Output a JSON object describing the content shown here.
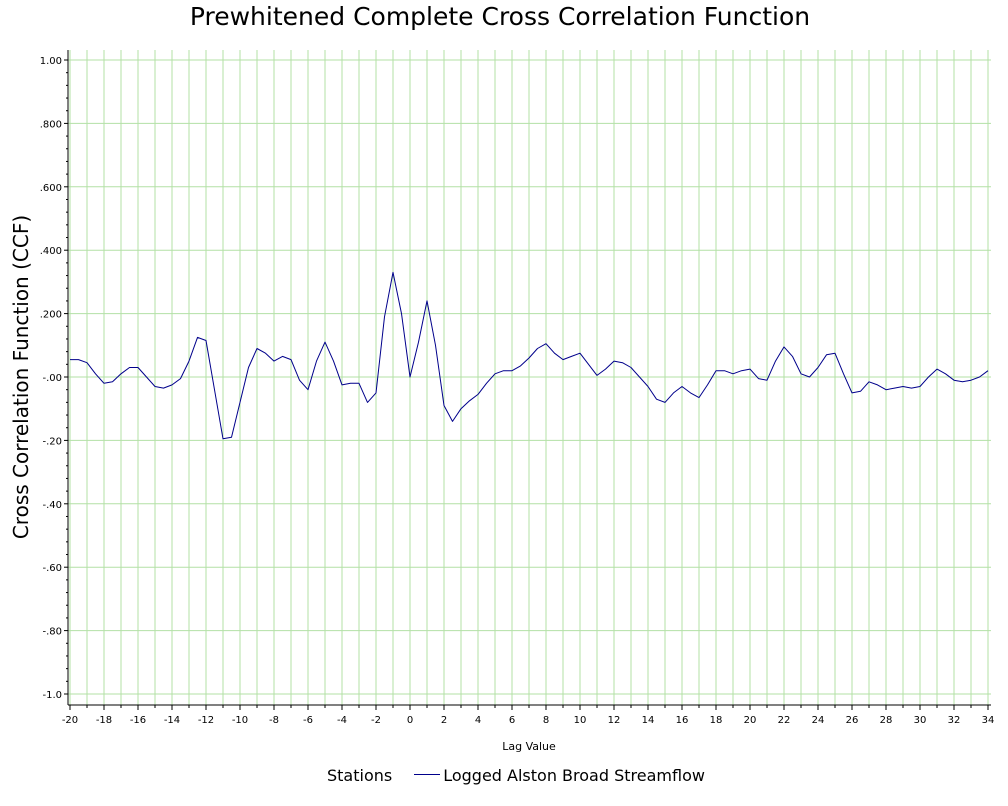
{
  "chart_data": {
    "type": "line",
    "title": "Prewhitened Complete Cross Correlation Function",
    "xlabel": "Lag Value",
    "ylabel": "Cross Correlation Function (CCF)",
    "xlim": [
      -20,
      34
    ],
    "ylim": [
      -1.0,
      1.0
    ],
    "grid": true,
    "x_ticks": [
      -20,
      -18,
      -16,
      -14,
      -12,
      -10,
      -8,
      -6,
      -4,
      -2,
      0,
      2,
      4,
      6,
      8,
      10,
      12,
      14,
      16,
      18,
      20,
      22,
      24,
      26,
      28,
      30,
      32,
      34
    ],
    "y_ticks": [
      {
        "value": 1.0,
        "label": "1.00"
      },
      {
        "value": 0.8,
        "label": ".800"
      },
      {
        "value": 0.6,
        "label": ".600"
      },
      {
        "value": 0.4,
        "label": ".400"
      },
      {
        "value": 0.2,
        "label": ".200"
      },
      {
        "value": 0.0,
        "label": "-.00"
      },
      {
        "value": -0.2,
        "label": "-.20"
      },
      {
        "value": -0.4,
        "label": "-.40"
      },
      {
        "value": -0.6,
        "label": "-.60"
      },
      {
        "value": -0.8,
        "label": "-.80"
      },
      {
        "value": -1.0,
        "label": "-1.0"
      }
    ],
    "legend_title": "Stations",
    "legend_position": "bottom",
    "series": [
      {
        "name": "Logged Alston Broad Streamflow",
        "color": "#00008b",
        "x": [
          -20,
          -19.5,
          -19,
          -18.5,
          -18,
          -17.5,
          -17,
          -16.5,
          -16,
          -15.5,
          -15,
          -14.5,
          -14,
          -13.5,
          -13,
          -12.5,
          -12,
          -11.5,
          -11,
          -10.5,
          -10,
          -9.5,
          -9,
          -8.5,
          -8,
          -7.5,
          -7,
          -6.5,
          -6,
          -5.5,
          -5,
          -4.5,
          -4,
          -3.5,
          -3,
          -2.5,
          -2,
          -1.5,
          -1,
          -0.5,
          0,
          0.5,
          1,
          1.5,
          2,
          2.5,
          3,
          3.5,
          4,
          4.5,
          5,
          5.5,
          6,
          6.5,
          7,
          7.5,
          8,
          8.5,
          9,
          9.5,
          10,
          10.5,
          11,
          11.5,
          12,
          12.5,
          13,
          13.5,
          14,
          14.5,
          15,
          15.5,
          16,
          16.5,
          17,
          17.5,
          18,
          18.5,
          19,
          19.5,
          20,
          20.5,
          21,
          21.5,
          22,
          22.5,
          23,
          23.5,
          24,
          24.5,
          25,
          25.5,
          26,
          26.5,
          27,
          27.5,
          28,
          28.5,
          29,
          29.5,
          30,
          30.5,
          31,
          31.5,
          32,
          32.5,
          33,
          33.5,
          34
        ],
        "y": [
          0.055,
          0.055,
          0.045,
          0.01,
          -0.02,
          -0.015,
          0.01,
          0.03,
          0.03,
          0.0,
          -0.03,
          -0.035,
          -0.025,
          -0.005,
          0.05,
          0.125,
          0.115,
          -0.04,
          -0.195,
          -0.19,
          -0.08,
          0.03,
          0.09,
          0.075,
          0.05,
          0.065,
          0.055,
          -0.01,
          -0.04,
          0.05,
          0.11,
          0.05,
          -0.025,
          -0.02,
          -0.02,
          -0.08,
          -0.05,
          0.19,
          0.33,
          0.2,
          0.0,
          0.11,
          0.24,
          0.1,
          -0.09,
          -0.14,
          -0.1,
          -0.075,
          -0.055,
          -0.02,
          0.01,
          0.02,
          0.02,
          0.035,
          0.06,
          0.09,
          0.105,
          0.075,
          0.055,
          0.065,
          0.075,
          0.04,
          0.005,
          0.025,
          0.05,
          0.045,
          0.03,
          0.0,
          -0.03,
          -0.07,
          -0.08,
          -0.05,
          -0.03,
          -0.05,
          -0.065,
          -0.025,
          0.02,
          0.02,
          0.01,
          0.02,
          0.025,
          -0.005,
          -0.01,
          0.05,
          0.095,
          0.065,
          0.01,
          0.0,
          0.03,
          0.07,
          0.075,
          0.01,
          -0.05,
          -0.045,
          -0.015,
          -0.025,
          -0.04,
          -0.035,
          -0.03,
          -0.035,
          -0.03,
          0.0,
          0.025,
          0.01,
          -0.01,
          -0.015,
          -0.01,
          0.0,
          0.02
        ]
      }
    ]
  }
}
